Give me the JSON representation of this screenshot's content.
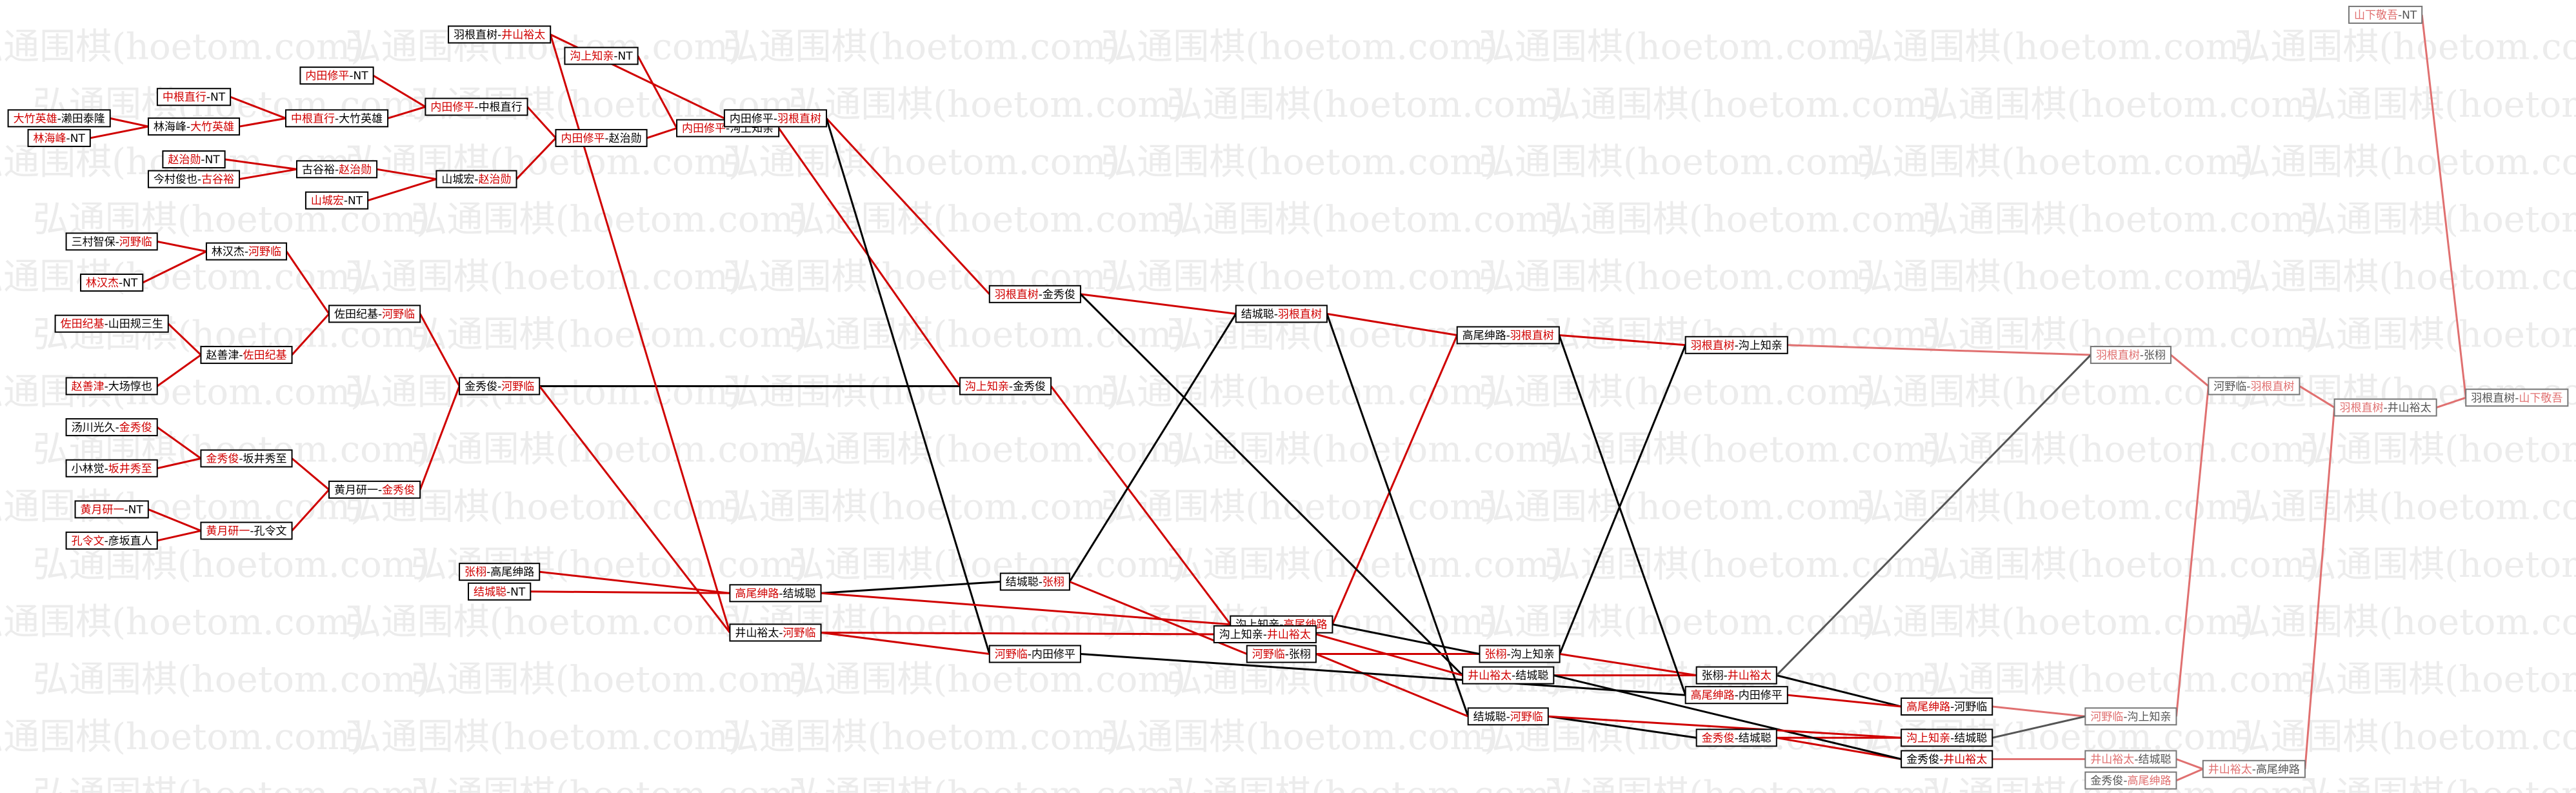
{
  "watermark": "弘通围棋(hoetom.com)",
  "separator": "-",
  "nodes": [
    {
      "a": "大竹英雄",
      "b": "濑田泰隆",
      "win": 0
    },
    {
      "a": "林海峰",
      "b": "NT",
      "win": 0
    },
    {
      "a": "三村智保",
      "b": "河野临",
      "win": 1
    },
    {
      "a": "林汉杰",
      "b": "NT",
      "win": 0
    },
    {
      "a": "佐田纪基",
      "b": "山田规三生",
      "win": 0
    },
    {
      "a": "赵善津",
      "b": "大场惇也",
      "win": 0
    },
    {
      "a": "汤川光久",
      "b": "金秀俊",
      "win": 1
    },
    {
      "a": "小林觉",
      "b": "坂井秀至",
      "win": 1
    },
    {
      "a": "黄月研一",
      "b": "NT",
      "win": 0
    },
    {
      "a": "孔令文",
      "b": "彦坂直人",
      "win": 0
    },
    {
      "a": "中根直行",
      "b": "NT",
      "win": 0
    },
    {
      "a": "林海峰",
      "b": "大竹英雄",
      "win": 1
    },
    {
      "a": "赵治勋",
      "b": "NT",
      "win": 0
    },
    {
      "a": "今村俊也",
      "b": "古谷裕",
      "win": 1
    },
    {
      "a": "林汉杰",
      "b": "河野临",
      "win": 1
    },
    {
      "a": "赵善津",
      "b": "佐田纪基",
      "win": 1
    },
    {
      "a": "金秀俊",
      "b": "坂井秀至",
      "win": 0
    },
    {
      "a": "黄月研一",
      "b": "孔令文",
      "win": 0
    },
    {
      "a": "内田修平",
      "b": "NT",
      "win": 0
    },
    {
      "a": "中根直行",
      "b": "大竹英雄",
      "win": 0
    },
    {
      "a": "古谷裕",
      "b": "赵治勋",
      "win": 1
    },
    {
      "a": "山城宏",
      "b": "NT",
      "win": 0
    },
    {
      "a": "佐田纪基",
      "b": "河野临",
      "win": 1
    },
    {
      "a": "黄月研一",
      "b": "金秀俊",
      "win": 1
    },
    {
      "a": "内田修平",
      "b": "中根直行",
      "win": 0
    },
    {
      "a": "山城宏",
      "b": "赵治勋",
      "win": 1
    },
    {
      "a": "羽根直树",
      "b": "井山裕太",
      "win": 1
    },
    {
      "a": "金秀俊",
      "b": "河野临",
      "win": 1
    },
    {
      "a": "张栩",
      "b": "高尾绅路",
      "win": 0
    },
    {
      "a": "结城聪",
      "b": "NT",
      "win": 0
    },
    {
      "a": "沟上知亲",
      "b": "NT",
      "win": 0
    },
    {
      "a": "内田修平",
      "b": "赵治勋",
      "win": 0
    },
    {
      "a": "内田修平",
      "b": "沟上知亲",
      "win": 0
    },
    {
      "a": "内田修平",
      "b": "羽根直树",
      "win": 1
    },
    {
      "a": "高尾绅路",
      "b": "结城聪",
      "win": 0
    },
    {
      "a": "井山裕太",
      "b": "河野临",
      "win": 1
    },
    {
      "a": "羽根直树",
      "b": "金秀俊",
      "win": 0
    },
    {
      "a": "沟上知亲",
      "b": "金秀俊",
      "win": 0
    },
    {
      "a": "结城聪",
      "b": "张栩",
      "win": 1
    },
    {
      "a": "河野临",
      "b": "内田修平",
      "win": 0
    },
    {
      "a": "结城聪",
      "b": "羽根直树",
      "win": 1
    },
    {
      "a": "沟上知亲",
      "b": "高尾绅路",
      "win": 1
    },
    {
      "a": "沟上知亲",
      "b": "井山裕太",
      "win": 1
    },
    {
      "a": "河野临",
      "b": "张栩",
      "win": 0
    },
    {
      "a": "高尾绅路",
      "b": "羽根直树",
      "win": 1
    },
    {
      "a": "张栩",
      "b": "沟上知亲",
      "win": 0
    },
    {
      "a": "井山裕太",
      "b": "结城聪",
      "win": 0
    },
    {
      "a": "结城聪",
      "b": "河野临",
      "win": 1
    },
    {
      "a": "羽根直树",
      "b": "沟上知亲",
      "win": 0
    },
    {
      "a": "张栩",
      "b": "井山裕太",
      "win": 1
    },
    {
      "a": "高尾绅路",
      "b": "内田修平",
      "win": 0
    },
    {
      "a": "金秀俊",
      "b": "结城聪",
      "win": 0
    },
    {
      "a": "高尾绅路",
      "b": "河野临",
      "win": 0
    },
    {
      "a": "沟上知亲",
      "b": "结城聪",
      "win": 0
    },
    {
      "a": "金秀俊",
      "b": "井山裕太",
      "win": 1
    },
    {
      "a": "羽根直树",
      "b": "张栩",
      "win": 0
    },
    {
      "a": "河野临",
      "b": "沟上知亲",
      "win": 0
    },
    {
      "a": "井山裕太",
      "b": "结城聪",
      "win": 0
    },
    {
      "a": "金秀俊",
      "b": "高尾绅路",
      "win": 1
    },
    {
      "a": "河野临",
      "b": "羽根直树",
      "win": 1
    },
    {
      "a": "井山裕太",
      "b": "高尾绅路",
      "win": 0
    },
    {
      "a": "羽根直树",
      "b": "井山裕太",
      "win": 0
    },
    {
      "a": "山下敬吾",
      "b": "NT",
      "win": 0
    },
    {
      "a": "羽根直树",
      "b": "山下敬吾",
      "win": 1
    }
  ]
}
